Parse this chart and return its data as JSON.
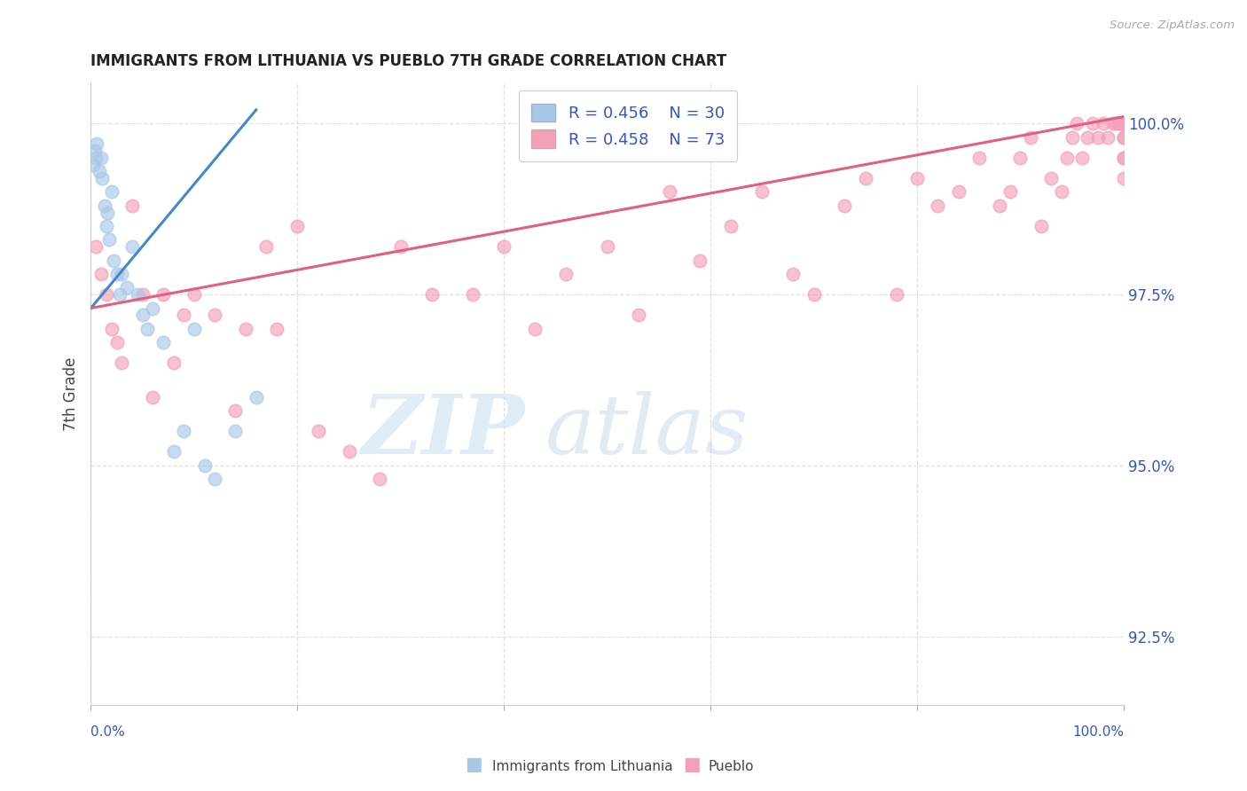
{
  "title": "IMMIGRANTS FROM LITHUANIA VS PUEBLO 7TH GRADE CORRELATION CHART",
  "source": "Source: ZipAtlas.com",
  "ylabel": "7th Grade",
  "legend_blue_label": "Immigrants from Lithuania",
  "legend_pink_label": "Pueblo",
  "legend_blue_R": "R = 0.456",
  "legend_blue_N": "N = 30",
  "legend_pink_R": "R = 0.458",
  "legend_pink_N": "N = 73",
  "blue_color": "#a8c8e8",
  "pink_color": "#f4a0b8",
  "blue_line_color": "#4488cc",
  "pink_line_color": "#e06080",
  "yticks": [
    92.5,
    95.0,
    97.5,
    100.0
  ],
  "ytick_labels": [
    "92.5%",
    "95.0%",
    "97.5%",
    "100.0%"
  ],
  "blue_scatter_x": [
    0.2,
    0.4,
    0.5,
    0.6,
    0.8,
    1.0,
    1.1,
    1.3,
    1.5,
    1.6,
    1.8,
    2.0,
    2.2,
    2.5,
    2.8,
    3.0,
    3.5,
    4.0,
    4.5,
    5.0,
    5.5,
    6.0,
    7.0,
    8.0,
    9.0,
    10.0,
    11.0,
    12.0,
    14.0,
    16.0
  ],
  "blue_scatter_y": [
    99.4,
    99.6,
    99.5,
    99.7,
    99.3,
    99.5,
    99.2,
    98.8,
    98.5,
    98.7,
    98.3,
    99.0,
    98.0,
    97.8,
    97.5,
    97.8,
    97.6,
    98.2,
    97.5,
    97.2,
    97.0,
    97.3,
    96.8,
    95.2,
    95.5,
    97.0,
    95.0,
    94.8,
    95.5,
    96.0
  ],
  "blue_line_x0": 0,
  "blue_line_y0": 97.3,
  "blue_line_x1": 16,
  "blue_line_y1": 100.2,
  "pink_scatter_x": [
    0.5,
    1.0,
    1.5,
    2.0,
    2.5,
    3.0,
    4.0,
    5.0,
    6.0,
    7.0,
    8.0,
    9.0,
    10.0,
    12.0,
    14.0,
    15.0,
    17.0,
    18.0,
    20.0,
    22.0,
    25.0,
    28.0,
    30.0,
    33.0,
    37.0,
    40.0,
    43.0,
    46.0,
    50.0,
    53.0,
    56.0,
    59.0,
    62.0,
    65.0,
    68.0,
    70.0,
    73.0,
    75.0,
    78.0,
    80.0,
    82.0,
    84.0,
    86.0,
    88.0,
    89.0,
    90.0,
    91.0,
    92.0,
    93.0,
    94.0,
    94.5,
    95.0,
    95.5,
    96.0,
    96.5,
    97.0,
    97.5,
    98.0,
    98.5,
    99.0,
    99.2,
    99.5,
    99.7,
    99.8,
    99.9,
    100.0,
    100.0,
    100.0,
    100.0,
    100.0,
    100.0,
    100.0,
    100.0
  ],
  "pink_scatter_y": [
    98.2,
    97.8,
    97.5,
    97.0,
    96.8,
    96.5,
    98.8,
    97.5,
    96.0,
    97.5,
    96.5,
    97.2,
    97.5,
    97.2,
    95.8,
    97.0,
    98.2,
    97.0,
    98.5,
    95.5,
    95.2,
    94.8,
    98.2,
    97.5,
    97.5,
    98.2,
    97.0,
    97.8,
    98.2,
    97.2,
    99.0,
    98.0,
    98.5,
    99.0,
    97.8,
    97.5,
    98.8,
    99.2,
    97.5,
    99.2,
    98.8,
    99.0,
    99.5,
    98.8,
    99.0,
    99.5,
    99.8,
    98.5,
    99.2,
    99.0,
    99.5,
    99.8,
    100.0,
    99.5,
    99.8,
    100.0,
    99.8,
    100.0,
    99.8,
    100.0,
    100.0,
    100.0,
    100.0,
    100.0,
    100.0,
    100.0,
    99.8,
    99.5,
    99.2,
    99.5,
    99.8,
    100.0,
    100.0
  ],
  "pink_line_x0": 0,
  "pink_line_y0": 97.3,
  "pink_line_x1": 100,
  "pink_line_y1": 100.1,
  "watermark_zip": "ZIP",
  "watermark_atlas": "atlas",
  "background_color": "#ffffff",
  "grid_color": "#e0e0e0",
  "ymin": 91.5,
  "ymax": 100.6,
  "xmin": 0,
  "xmax": 100
}
